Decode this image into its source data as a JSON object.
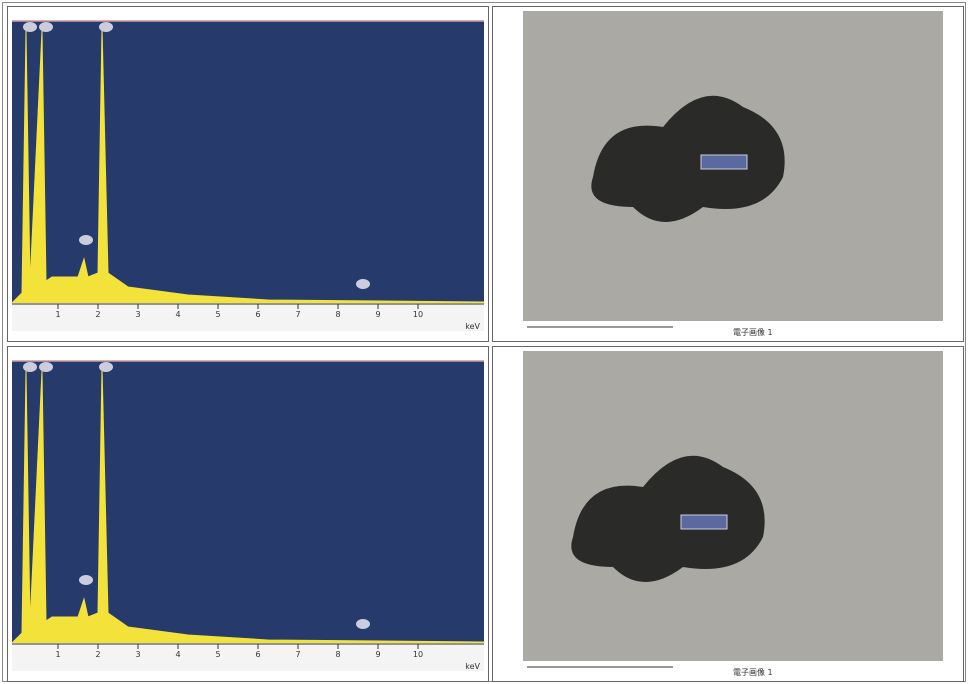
{
  "panels": [
    {
      "spectrum": {
        "ticks": [
          "1",
          "2",
          "3",
          "4",
          "5",
          "6",
          "7",
          "8",
          "9",
          "10"
        ],
        "unit": "keV"
      },
      "image": {
        "caption": "電子画像 1"
      }
    },
    {
      "spectrum": {
        "ticks": [
          "1",
          "2",
          "3",
          "4",
          "5",
          "6",
          "7",
          "8",
          "9",
          "10"
        ],
        "unit": "keV"
      },
      "image": {
        "caption": "電子画像 1"
      }
    }
  ]
}
